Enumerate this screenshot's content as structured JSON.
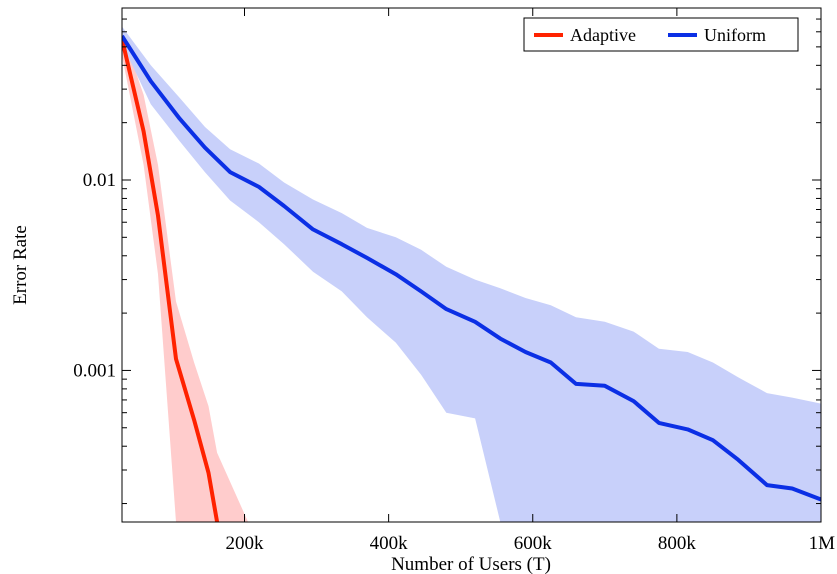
{
  "chart_data": {
    "type": "line",
    "xlabel": "Number of Users (T)",
    "ylabel": "Error Rate",
    "xlim": [
      30000,
      1000000
    ],
    "ylim": [
      0.00016,
      0.08
    ],
    "yscale": "log",
    "grid": false,
    "legend": "top-right",
    "x_ticks": [
      {
        "value": 200000,
        "label": "200k"
      },
      {
        "value": 400000,
        "label": "400k"
      },
      {
        "value": 600000,
        "label": "600k"
      },
      {
        "value": 800000,
        "label": "800k"
      },
      {
        "value": 1000000,
        "label": "1M"
      }
    ],
    "y_ticks": [
      {
        "value": 0.001,
        "label": "0.001"
      },
      {
        "value": 0.01,
        "label": "0.01"
      }
    ],
    "series": [
      {
        "name": "Adaptive",
        "color": "#ff2200",
        "band_color": "#ffcccc",
        "x": [
          30000,
          60000,
          80000,
          105000,
          130000,
          150000,
          162000
        ],
        "y": [
          0.055,
          0.018,
          0.0065,
          0.00115,
          0.00055,
          0.00029,
          0.00016
        ],
        "lower": [
          0.045,
          0.012,
          0.0032,
          0.00016,
          0.00016,
          0.00016,
          0.00016
        ],
        "upper": [
          0.06,
          0.028,
          0.012,
          0.0023,
          0.0011,
          0.00065,
          0.00037
        ],
        "band_end_x": 205000
      },
      {
        "name": "Uniform",
        "color": "#0b2fe5",
        "band_color": "#c8d0fa",
        "x": [
          30000,
          70000,
          110000,
          145000,
          180000,
          220000,
          255000,
          295000,
          335000,
          370000,
          410000,
          445000,
          480000,
          520000,
          555000,
          590000,
          625000,
          660000,
          700000,
          740000,
          775000,
          815000,
          850000,
          885000,
          925000,
          960000,
          1000000
        ],
        "y": [
          0.057,
          0.033,
          0.021,
          0.0148,
          0.011,
          0.0092,
          0.0073,
          0.0055,
          0.0046,
          0.0039,
          0.0032,
          0.0026,
          0.0021,
          0.0018,
          0.00147,
          0.00125,
          0.0011,
          0.00085,
          0.00083,
          0.00069,
          0.00053,
          0.00049,
          0.00043,
          0.00034,
          0.00025,
          0.00024,
          0.00021
        ],
        "lower": [
          0.052,
          0.025,
          0.016,
          0.011,
          0.0078,
          0.006,
          0.0046,
          0.0033,
          0.0026,
          0.0019,
          0.0014,
          0.00095,
          0.0006,
          0.00056,
          0.00016,
          0.00016,
          0.00016,
          0.00016,
          0.00016,
          0.00016,
          0.00016,
          0.00016,
          0.00016,
          0.00016,
          0.00016,
          0.00016,
          0.00016
        ],
        "upper": [
          0.064,
          0.04,
          0.027,
          0.019,
          0.0145,
          0.0122,
          0.0097,
          0.0079,
          0.0067,
          0.0056,
          0.005,
          0.0043,
          0.0035,
          0.003,
          0.0027,
          0.0024,
          0.0022,
          0.0019,
          0.0018,
          0.0016,
          0.0013,
          0.00125,
          0.0011,
          0.00092,
          0.00076,
          0.00072,
          0.00067
        ]
      }
    ]
  }
}
